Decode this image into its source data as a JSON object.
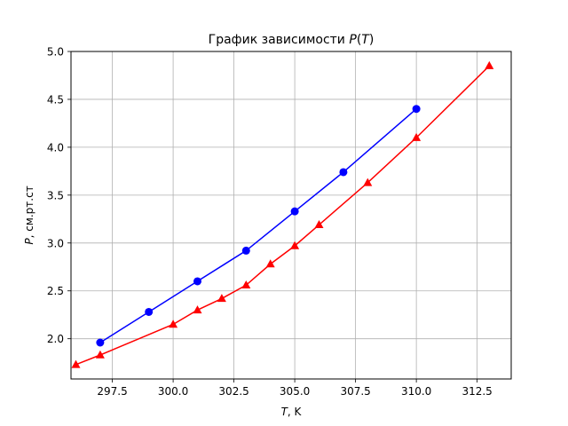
{
  "chart_data": {
    "type": "line",
    "title_prefix": "График зависимости ",
    "title_var": "P",
    "title_open": "(",
    "title_arg": "T",
    "title_close": ")",
    "xlabel_var": "T",
    "xlabel_unit": ", K",
    "ylabel_var": "P",
    "ylabel_unit": ", см.рт.ст",
    "xlim": [
      295.8,
      313.9
    ],
    "ylim": [
      1.58,
      5.0
    ],
    "xticks": [
      297.5,
      300.0,
      302.5,
      305.0,
      307.5,
      310.0,
      312.5
    ],
    "xtick_labels": [
      "297.5",
      "300.0",
      "302.5",
      "305.0",
      "307.5",
      "310.0",
      "312.5"
    ],
    "yticks": [
      2.0,
      2.5,
      3.0,
      3.5,
      4.0,
      4.5,
      5.0
    ],
    "ytick_labels": [
      "2.0",
      "2.5",
      "3.0",
      "3.5",
      "4.0",
      "4.5",
      "5.0"
    ],
    "grid": true,
    "series": [
      {
        "color": "#0000ff",
        "marker": "circle",
        "x": [
          297,
          299,
          301,
          303,
          305,
          307,
          310
        ],
        "y": [
          1.96,
          2.28,
          2.6,
          2.92,
          3.33,
          3.74,
          4.4
        ]
      },
      {
        "color": "#ff0000",
        "marker": "triangle",
        "x": [
          296,
          297,
          300,
          301,
          302,
          303,
          304,
          305,
          306,
          308,
          310,
          313
        ],
        "y": [
          1.73,
          1.83,
          2.15,
          2.3,
          2.42,
          2.56,
          2.78,
          2.97,
          3.19,
          3.63,
          4.1,
          4.85
        ]
      }
    ]
  }
}
